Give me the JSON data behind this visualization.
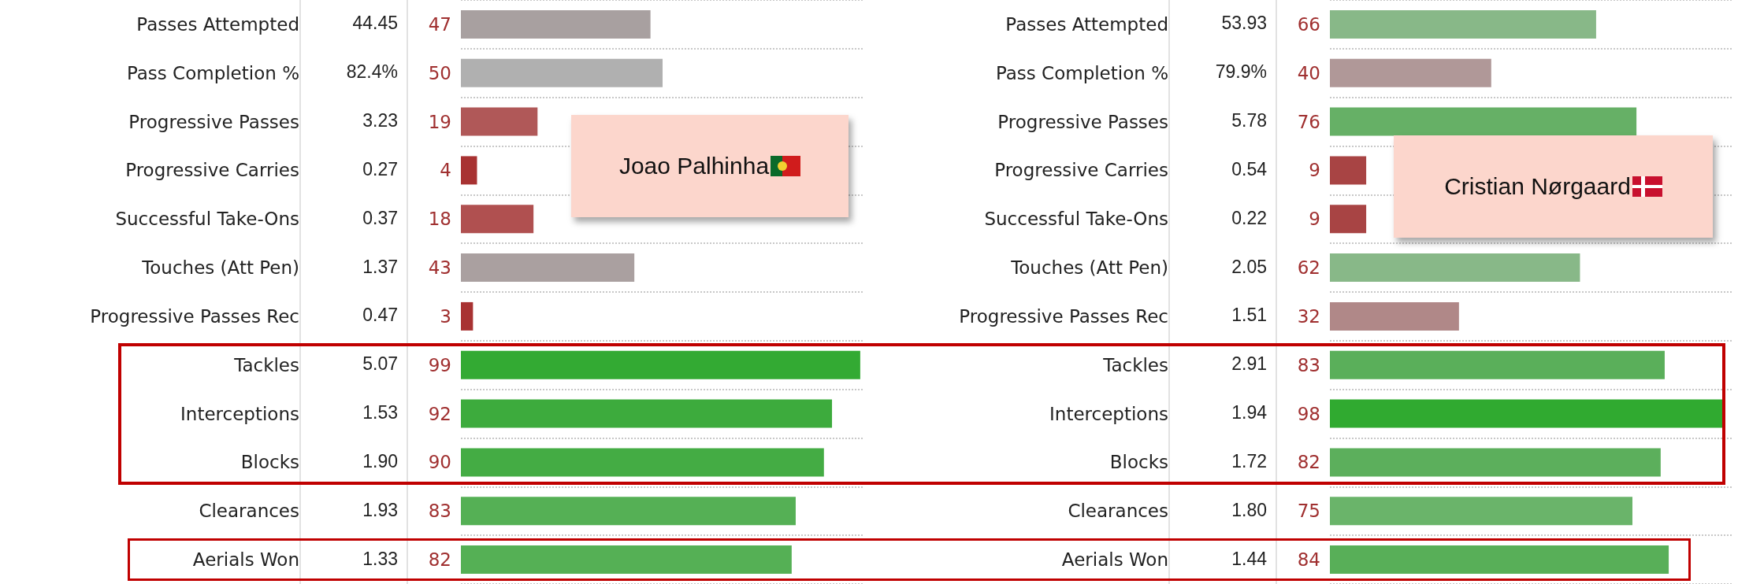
{
  "chart_data": [
    {
      "type": "bar",
      "orientation": "horizontal",
      "title": "Joao Palhinha",
      "categories": [
        "Passes Attempted",
        "Pass Completion %",
        "Progressive Passes",
        "Progressive Carries",
        "Successful Take-Ons",
        "Touches (Att Pen)",
        "Progressive Passes Rec",
        "Tackles",
        "Interceptions",
        "Blocks",
        "Clearances",
        "Aerials Won"
      ],
      "values": [
        47,
        50,
        19,
        4,
        18,
        43,
        3,
        99,
        92,
        90,
        83,
        82
      ],
      "colors": [
        "#a8a0a0",
        "#b0b0b0",
        "#b05858",
        "#a83232",
        "#b05050",
        "#aaa0a0",
        "#a83232",
        "#33aa33",
        "#3dab3d",
        "#44ac44",
        "#55b055",
        "#55b055"
      ],
      "xlim": [
        0,
        100
      ],
      "data_labels": true,
      "grid": "y",
      "annotations": [
        "44.45",
        "82.4%",
        "3.23",
        "0.27",
        "0.37",
        "1.37",
        "0.47",
        "5.07",
        "1.53",
        "1.90",
        "1.93",
        "1.33"
      ]
    },
    {
      "type": "bar",
      "orientation": "horizontal",
      "title": "Cristian Nørgaard",
      "categories": [
        "Passes Attempted",
        "Pass Completion %",
        "Progressive Passes",
        "Progressive Carries",
        "Successful Take-Ons",
        "Touches (Att Pen)",
        "Progressive Passes Rec",
        "Tackles",
        "Interceptions",
        "Blocks",
        "Clearances",
        "Aerials Won"
      ],
      "values": [
        66,
        40,
        76,
        9,
        9,
        62,
        32,
        83,
        98,
        82,
        75,
        84
      ],
      "colors": [
        "#88b888",
        "#b09898",
        "#66b066",
        "#a84444",
        "#a84444",
        "#88b888",
        "#b08888",
        "#5aaf5a",
        "#30aa30",
        "#5caf5c",
        "#6ab46a",
        "#58af58"
      ],
      "xlim": [
        0,
        100
      ],
      "data_labels": true,
      "grid": "y",
      "annotations": [
        "53.93",
        "79.9%",
        "5.78",
        "0.54",
        "0.22",
        "2.05",
        "1.51",
        "2.91",
        "1.94",
        "1.72",
        "1.80",
        "1.44"
      ]
    }
  ]
}
